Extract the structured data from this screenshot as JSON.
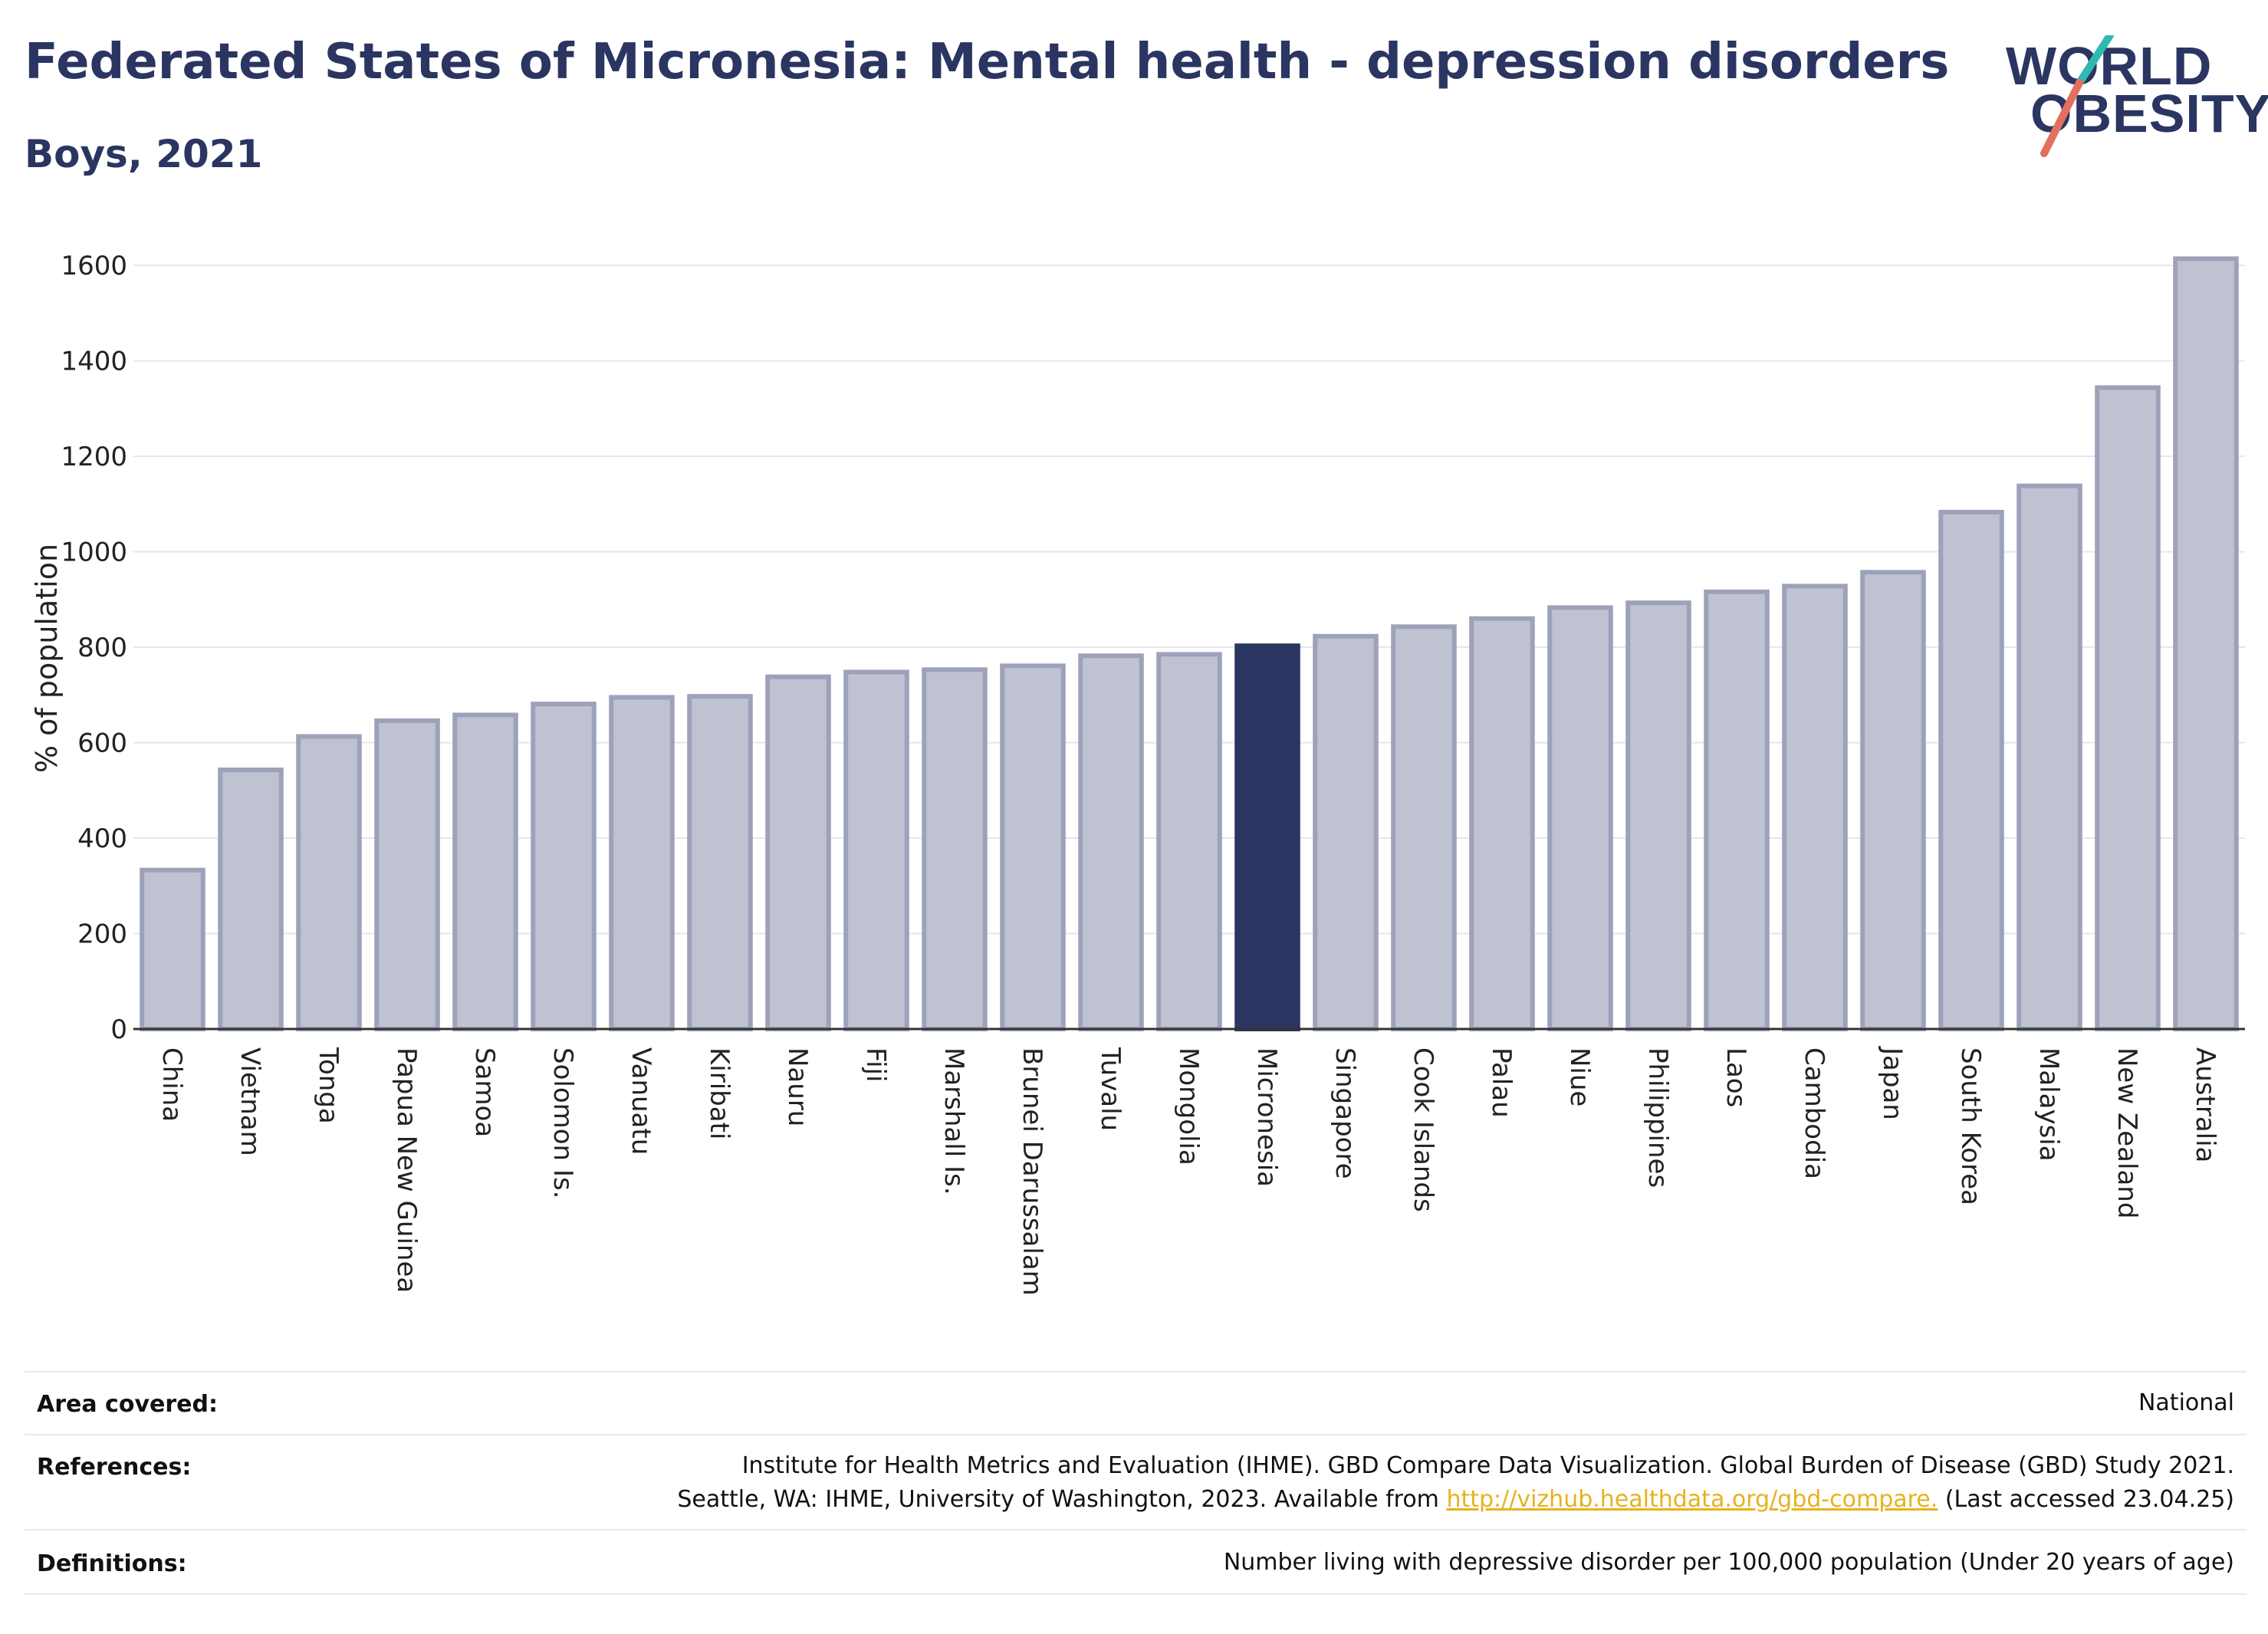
{
  "header": {
    "title": "Federated States of Micronesia: Mental health - depression disorders",
    "subtitle": "Boys, 2021"
  },
  "logo": {
    "line1": "WORLD",
    "line2": "OBESITY"
  },
  "colors": {
    "highlight": "#2b3561",
    "bar_fill": "#bfc2d0",
    "bar_stroke": "#9da2ba",
    "grid": "#e6e6ee"
  },
  "chart_data": {
    "type": "bar",
    "ylabel": "% of population",
    "ylim": [
      0,
      1650
    ],
    "yticks": [
      0,
      200,
      400,
      600,
      800,
      1000,
      1200,
      1400,
      1600
    ],
    "grid": true,
    "highlight": "Micronesia",
    "categories": [
      "China",
      "Vietnam",
      "Tonga",
      "Papua New Guinea",
      "Samoa",
      "Solomon Is.",
      "Vanuatu",
      "Kiribati",
      "Nauru",
      "Fiji",
      "Marshall Is.",
      "Brunei Darussalam",
      "Tuvalu",
      "Mongolia",
      "Micronesia",
      "Singapore",
      "Cook Islands",
      "Palau",
      "Niue",
      "Philippines",
      "Laos",
      "Cambodia",
      "Japan",
      "South Korea",
      "Malaysia",
      "New Zealand",
      "Australia"
    ],
    "values": [
      333,
      543,
      613,
      646,
      658,
      681,
      695,
      697,
      738,
      748,
      753,
      761,
      782,
      785,
      803,
      823,
      843,
      860,
      883,
      893,
      916,
      928,
      957,
      1083,
      1138,
      1344,
      1614
    ]
  },
  "meta": {
    "area_label": "Area covered:",
    "area_value": "National",
    "references_label": "References:",
    "references_line1": "Institute for Health Metrics and Evaluation (IHME). GBD Compare Data Visualization. Global Burden of Disease (GBD) Study 2021.",
    "references_line2_pre": "Seattle, WA: IHME, University of Washington, 2023. Available from ",
    "references_link": "http://vizhub.healthdata.org/gbd-compare.",
    "references_line2_post": " (Last accessed 23.04.25)",
    "definitions_label": "Definitions:",
    "definitions_value": "Number living with depressive disorder per 100,000 population (Under 20 years of age)"
  }
}
